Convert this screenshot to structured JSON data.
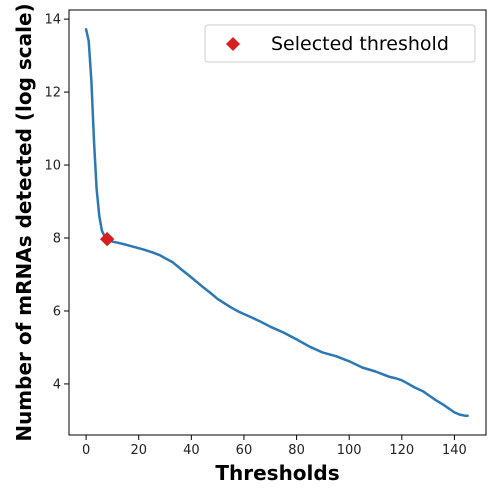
{
  "chart_data": {
    "type": "line",
    "title": "",
    "xlabel": "Thresholds",
    "ylabel": "Number of mRNAs detected (log scale)",
    "xlim": [
      -6.5,
      152
    ],
    "ylim": [
      2.6,
      14.25
    ],
    "xticks": [
      0,
      20,
      40,
      60,
      80,
      100,
      120,
      140
    ],
    "yticks": [
      4,
      6,
      8,
      10,
      12,
      14
    ],
    "grid": false,
    "legend_position": "top-right",
    "series": [
      {
        "name": "",
        "color": "#2b78b5",
        "x": [
          0,
          1,
          2,
          3,
          4,
          5,
          6,
          7,
          8,
          9,
          10,
          12,
          15,
          18,
          20,
          22,
          25,
          28,
          30,
          33,
          36,
          40,
          44,
          48,
          50,
          55,
          58,
          62,
          66,
          70,
          75,
          80,
          85,
          90,
          95,
          100,
          105,
          110,
          115,
          118,
          120,
          122,
          125,
          128,
          130,
          133,
          136,
          140,
          142,
          144,
          145
        ],
        "y": [
          13.72,
          13.4,
          12.3,
          10.65,
          9.35,
          8.6,
          8.2,
          8.05,
          7.98,
          7.94,
          7.9,
          7.87,
          7.82,
          7.76,
          7.72,
          7.68,
          7.61,
          7.53,
          7.45,
          7.33,
          7.15,
          6.92,
          6.68,
          6.45,
          6.33,
          6.1,
          5.98,
          5.85,
          5.72,
          5.57,
          5.41,
          5.22,
          5.02,
          4.86,
          4.76,
          4.62,
          4.45,
          4.34,
          4.2,
          4.15,
          4.1,
          4.02,
          3.9,
          3.8,
          3.7,
          3.55,
          3.42,
          3.22,
          3.16,
          3.13,
          3.13
        ]
      }
    ],
    "highlight": {
      "label": "Selected threshold",
      "x": 8,
      "y": 7.97,
      "marker": "diamond",
      "color": "#d62020"
    }
  }
}
